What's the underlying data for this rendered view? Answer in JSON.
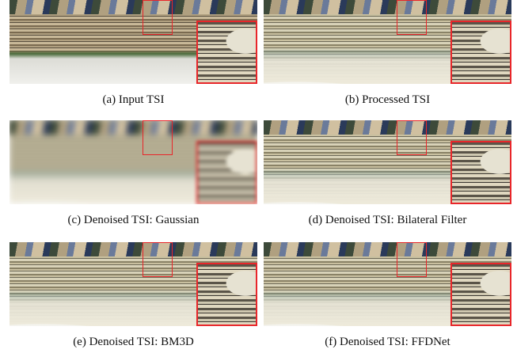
{
  "panels": [
    {
      "caption": "(a) Input TSI"
    },
    {
      "caption": "(b) Processed TSI"
    },
    {
      "caption": "(c) Denoised TSI: Gaussian"
    },
    {
      "caption": "(d) Denoised TSI: Bilateral Filter"
    },
    {
      "caption": "(e) Denoised TSI: BM3D"
    },
    {
      "caption": "(f) Denoised TSI: FFDNet"
    }
  ]
}
